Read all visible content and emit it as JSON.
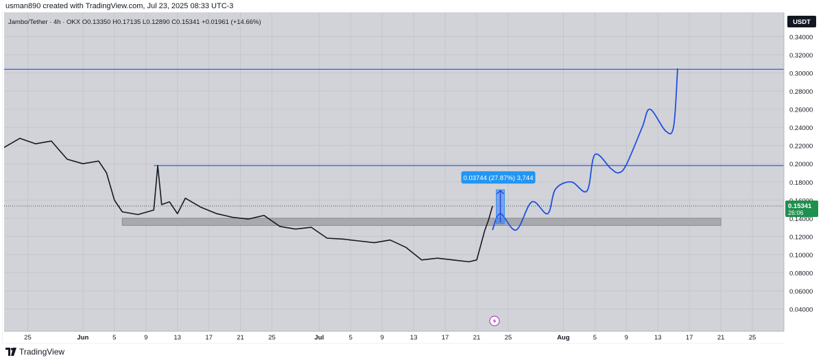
{
  "header": {
    "attribution": "usman890 created with TradingView.com, Jul 23, 2025 08:33 UTC-3"
  },
  "legend": {
    "text": "Jambo/Tether · 4h · OKX  O0.13350  H0.17135  L0.12890  C0.15341  +0.01961 (+14.66%)"
  },
  "currency_button": "USDT",
  "footer": {
    "brand": "TradingView"
  },
  "colors": {
    "plot_bg": "#d2d3d8",
    "price_axis_bg": "#ffffff",
    "line_blue": "#2a5fe0",
    "projection_blue": "#1e4fe0",
    "zone_gray": "#a8a9ad",
    "last_price_green": "#1f8f4e",
    "badge_blue": "#2196f3",
    "price_line": "#131722"
  },
  "chart_data": {
    "type": "line",
    "title": "Jambo/Tether · 4h · OKX",
    "symbol": "Jambo/Tether",
    "interval": "4h",
    "exchange": "OKX",
    "ohlc": {
      "open": 0.1335,
      "high": 0.17135,
      "low": 0.1289,
      "close": 0.15341,
      "change": 0.01961,
      "change_pct": 14.66
    },
    "ylim": [
      0.02,
      0.36
    ],
    "y_ticks": [
      "0.34000",
      "0.32000",
      "0.30000",
      "0.28000",
      "0.26000",
      "0.24000",
      "0.22000",
      "0.20000",
      "0.18000",
      "0.16000",
      "0.14000",
      "0.12000",
      "0.10000",
      "0.08000",
      "0.06000",
      "0.04000"
    ],
    "y_tick_values": [
      0.34,
      0.32,
      0.3,
      0.28,
      0.26,
      0.24,
      0.22,
      0.2,
      0.18,
      0.16,
      0.14,
      0.12,
      0.1,
      0.08,
      0.06,
      0.04
    ],
    "x_range": [
      "2025-05-22",
      "2025-08-29"
    ],
    "x_ticks": [
      {
        "label": "25",
        "date": "2025-05-25",
        "bold": false
      },
      {
        "label": "Jun",
        "date": "2025-06-01",
        "bold": true
      },
      {
        "label": "5",
        "date": "2025-06-05",
        "bold": false
      },
      {
        "label": "9",
        "date": "2025-06-09",
        "bold": false
      },
      {
        "label": "13",
        "date": "2025-06-13",
        "bold": false
      },
      {
        "label": "17",
        "date": "2025-06-17",
        "bold": false
      },
      {
        "label": "21",
        "date": "2025-06-21",
        "bold": false
      },
      {
        "label": "25",
        "date": "2025-06-25",
        "bold": false
      },
      {
        "label": "Jul",
        "date": "2025-07-01",
        "bold": true
      },
      {
        "label": "5",
        "date": "2025-07-05",
        "bold": false
      },
      {
        "label": "9",
        "date": "2025-07-09",
        "bold": false
      },
      {
        "label": "13",
        "date": "2025-07-13",
        "bold": false
      },
      {
        "label": "17",
        "date": "2025-07-17",
        "bold": false
      },
      {
        "label": "21",
        "date": "2025-07-21",
        "bold": false
      },
      {
        "label": "25",
        "date": "2025-07-25",
        "bold": false
      },
      {
        "label": "Aug",
        "date": "2025-08-01",
        "bold": true
      },
      {
        "label": "5",
        "date": "2025-08-05",
        "bold": false
      },
      {
        "label": "9",
        "date": "2025-08-09",
        "bold": false
      },
      {
        "label": "13",
        "date": "2025-08-13",
        "bold": false
      },
      {
        "label": "17",
        "date": "2025-08-17",
        "bold": false
      },
      {
        "label": "21",
        "date": "2025-08-21",
        "bold": false
      },
      {
        "label": "25",
        "date": "2025-08-25",
        "bold": false
      }
    ],
    "grid": true,
    "series": [
      {
        "kind": "price",
        "x": [
          "2025-05-22",
          "2025-05-24",
          "2025-05-26",
          "2025-05-28",
          "2025-05-30",
          "2025-06-01",
          "2025-06-03",
          "2025-06-04",
          "2025-06-05",
          "2025-06-06",
          "2025-06-08",
          "2025-06-10",
          "2025-06-10T12:00",
          "2025-06-11",
          "2025-06-12",
          "2025-06-13",
          "2025-06-14",
          "2025-06-16",
          "2025-06-18",
          "2025-06-20",
          "2025-06-22",
          "2025-06-24",
          "2025-06-26",
          "2025-06-28",
          "2025-06-30",
          "2025-07-02",
          "2025-07-04",
          "2025-07-06",
          "2025-07-08",
          "2025-07-10",
          "2025-07-12",
          "2025-07-14",
          "2025-07-16",
          "2025-07-18",
          "2025-07-20",
          "2025-07-21",
          "2025-07-22",
          "2025-07-22T12:00",
          "2025-07-23"
        ],
        "y": [
          0.218,
          0.228,
          0.222,
          0.225,
          0.205,
          0.2,
          0.203,
          0.19,
          0.16,
          0.147,
          0.144,
          0.149,
          0.198,
          0.155,
          0.158,
          0.145,
          0.162,
          0.152,
          0.145,
          0.141,
          0.139,
          0.143,
          0.131,
          0.128,
          0.13,
          0.118,
          0.117,
          0.115,
          0.113,
          0.116,
          0.108,
          0.094,
          0.096,
          0.094,
          0.092,
          0.094,
          0.126,
          0.138,
          0.1534
        ]
      },
      {
        "kind": "projection",
        "x": [
          "2025-07-23",
          "2025-07-24",
          "2025-07-26",
          "2025-07-28",
          "2025-07-30",
          "2025-07-31",
          "2025-08-02",
          "2025-08-04",
          "2025-08-05",
          "2025-08-07",
          "2025-08-08",
          "2025-08-09",
          "2025-08-11",
          "2025-08-12",
          "2025-08-14",
          "2025-08-15",
          "2025-08-15T12:00"
        ],
        "y": [
          0.127,
          0.145,
          0.127,
          0.158,
          0.145,
          0.172,
          0.18,
          0.17,
          0.21,
          0.195,
          0.19,
          0.199,
          0.24,
          0.26,
          0.236,
          0.241,
          0.305
        ]
      }
    ],
    "horizontal_lines": [
      {
        "y": 0.304,
        "from": "2025-05-22"
      },
      {
        "y": 0.198,
        "from": "2025-06-10"
      }
    ],
    "zone": {
      "y1": 0.132,
      "y2": 0.14,
      "from": "2025-06-06",
      "to": "2025-08-21"
    },
    "measure": {
      "label": "0.03744 (27.87%) 3,744",
      "y_from": 0.1339,
      "y_to": 0.1713,
      "at": "2025-07-24"
    },
    "last_price": {
      "value": "0.15341",
      "countdown": "26:06",
      "y": 0.15341
    },
    "alert_marker_at": "2025-07-23"
  }
}
